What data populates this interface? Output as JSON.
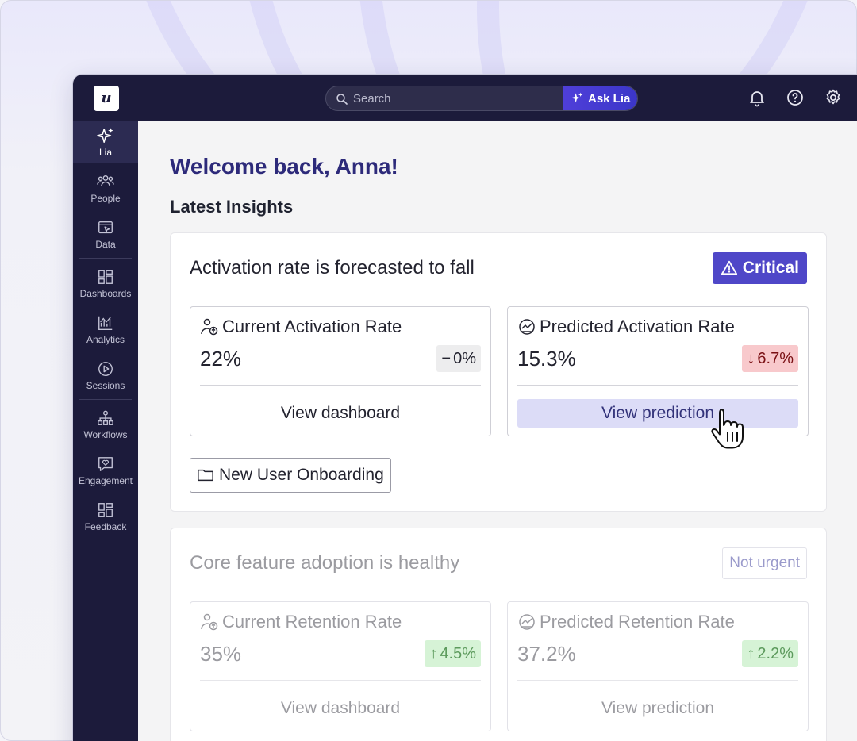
{
  "topbar": {
    "logo": "u",
    "search": {
      "placeholder": "Search"
    },
    "ask_lia_label": "Ask Lia",
    "icons": [
      "bell-icon",
      "help-icon",
      "gear-icon"
    ]
  },
  "sidebar": {
    "items": [
      {
        "label": "Lia",
        "icon": "sparkle-icon",
        "active": true
      },
      {
        "label": "People",
        "icon": "people-icon"
      },
      {
        "label": "Data",
        "icon": "data-icon"
      },
      {
        "label": "Dashboards",
        "icon": "dashboards-icon"
      },
      {
        "label": "Analytics",
        "icon": "analytics-icon"
      },
      {
        "label": "Sessions",
        "icon": "play-icon"
      },
      {
        "label": "Workflows",
        "icon": "workflows-icon"
      },
      {
        "label": "Engagement",
        "icon": "engagement-icon"
      },
      {
        "label": "Feedback",
        "icon": "feedback-icon"
      }
    ]
  },
  "main": {
    "welcome": "Welcome back, Anna!",
    "section_title": "Latest Insights",
    "insights": [
      {
        "title": "Activation rate is forecasted to fall",
        "badge": "Critical",
        "metrics": [
          {
            "label": "Current Activation Rate",
            "value": "22%",
            "delta": "0%",
            "delta_dir": "neutral",
            "link": "View dashboard"
          },
          {
            "label": "Predicted Activation Rate",
            "value": "15.3%",
            "delta": "6.7%",
            "delta_dir": "down",
            "link": "View prediction"
          }
        ],
        "tag": "New User Onboarding"
      },
      {
        "title": "Core feature adoption is healthy",
        "badge": "Not urgent",
        "metrics": [
          {
            "label": "Current Retention Rate",
            "value": "35%",
            "delta": "4.5%",
            "delta_dir": "up",
            "link": "View dashboard"
          },
          {
            "label": "Predicted Retention Rate",
            "value": "37.2%",
            "delta": "2.2%",
            "delta_dir": "up",
            "link": "View prediction"
          }
        ]
      }
    ]
  },
  "colors": {
    "nav_bg": "#1c1b3b",
    "accent": "#4f47c8",
    "critical": "#4f47c8",
    "negative_bg": "#f8c9cc",
    "positive_bg": "#d6f3d6"
  }
}
